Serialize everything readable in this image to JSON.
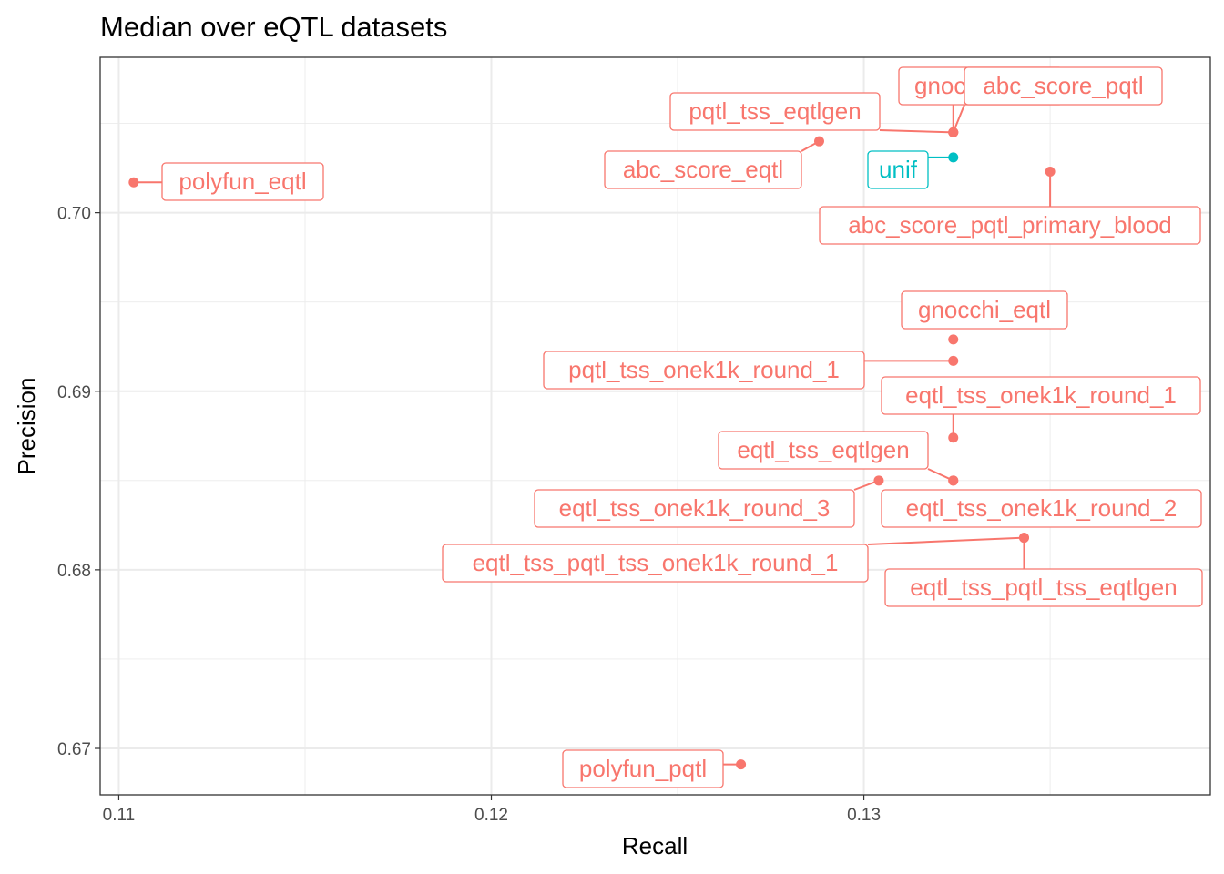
{
  "chart_data": {
    "type": "scatter",
    "title": "Median over eQTL datasets",
    "xlabel": "Recall",
    "ylabel": "Precision",
    "xlim": [
      0.1095,
      0.1393
    ],
    "ylim": [
      0.6674,
      0.7087
    ],
    "x_ticks": [
      0.11,
      0.12,
      0.13
    ],
    "x_tick_labels": [
      "0.11",
      "0.12",
      "0.13"
    ],
    "y_ticks": [
      0.67,
      0.68,
      0.69,
      0.7
    ],
    "y_tick_labels": [
      "0.67",
      "0.68",
      "0.69",
      "0.70"
    ],
    "grid": true,
    "legend": "none",
    "colors": {
      "default": "#F8766D",
      "baseline": "#00BFC4"
    },
    "points": [
      {
        "label": "polyfun_eqtl",
        "x": 0.1104,
        "y": 0.7017,
        "group": "default"
      },
      {
        "label": "abc_score_eqtl",
        "x": 0.1288,
        "y": 0.704,
        "group": "default"
      },
      {
        "label": "pqtl_tss_eqtlgen",
        "x": 0.1324,
        "y": 0.7045,
        "group": "default"
      },
      {
        "label": "gnocchi_pqtl",
        "x": 0.1324,
        "y": 0.7045,
        "group": "default"
      },
      {
        "label": "abc_score_pqtl",
        "x": 0.1324,
        "y": 0.7045,
        "group": "default"
      },
      {
        "label": "unif",
        "x": 0.1324,
        "y": 0.7031,
        "group": "baseline"
      },
      {
        "label": "abc_score_pqtl_primary_blood",
        "x": 0.135,
        "y": 0.7023,
        "group": "default"
      },
      {
        "label": "gnocchi_eqtl",
        "x": 0.1324,
        "y": 0.6929,
        "group": "default"
      },
      {
        "label": "pqtl_tss_onek1k_round_1",
        "x": 0.1324,
        "y": 0.6917,
        "group": "default"
      },
      {
        "label": "eqtl_tss_onek1k_round_1",
        "x": 0.1324,
        "y": 0.6874,
        "group": "default"
      },
      {
        "label": "eqtl_tss_eqtlgen",
        "x": 0.1324,
        "y": 0.685,
        "group": "default"
      },
      {
        "label": "eqtl_tss_onek1k_round_3",
        "x": 0.1304,
        "y": 0.685,
        "group": "default"
      },
      {
        "label": "eqtl_tss_onek1k_round_2",
        "x": 0.1324,
        "y": 0.685,
        "group": "default"
      },
      {
        "label": "eqtl_tss_pqtl_tss_onek1k_round_1",
        "x": 0.1343,
        "y": 0.6818,
        "group": "default"
      },
      {
        "label": "eqtl_tss_pqtl_tss_eqtlgen",
        "x": 0.1343,
        "y": 0.6818,
        "group": "default"
      },
      {
        "label": "polyfun_pqtl",
        "x": 0.1267,
        "y": 0.6691,
        "group": "default"
      }
    ]
  }
}
